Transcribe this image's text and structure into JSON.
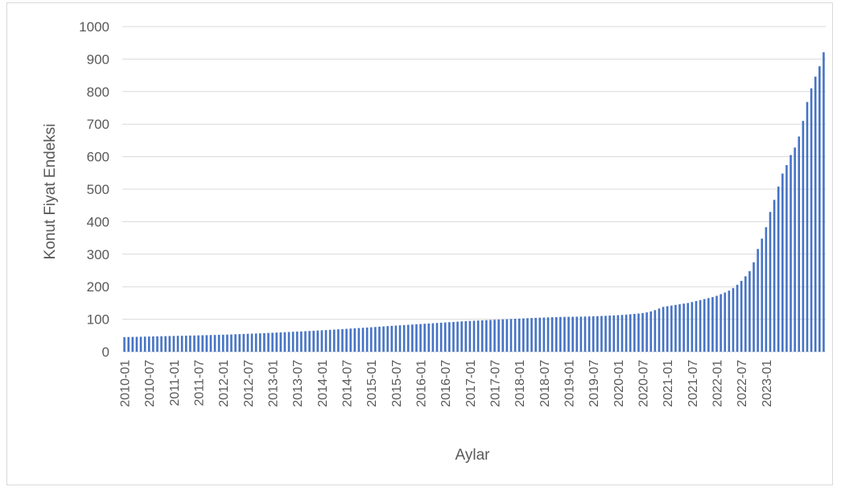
{
  "chart_data": {
    "type": "bar",
    "xlabel": "Aylar",
    "ylabel": "Konut Fiyat Endeksi",
    "ylim": [
      0,
      1000
    ],
    "yticks": [
      "0",
      "100",
      "200",
      "300",
      "400",
      "500",
      "600",
      "700",
      "800",
      "900",
      "1000"
    ],
    "grid": true,
    "bar_color": "#4472c4",
    "xtick_labels": [
      "2010-01",
      "2010-07",
      "2011-01",
      "2011-07",
      "2012-01",
      "2012-07",
      "2013-01",
      "2013-07",
      "2014-01",
      "2014-07",
      "2015-01",
      "2015-07",
      "2016-01",
      "2016-07",
      "2017-01",
      "2017-07",
      "2018-01",
      "2018-07",
      "2019-01",
      "2019-07",
      "2020-01",
      "2020-07",
      "2021-01",
      "2021-07",
      "2022-01",
      "2022-07",
      "2023-01"
    ],
    "start_month": "2010-01",
    "values": [
      45.0,
      45.3,
      45.6,
      45.9,
      46.2,
      46.5,
      46.8,
      47.1,
      47.4,
      47.7,
      48.0,
      48.3,
      48.6,
      48.9,
      49.2,
      49.5,
      49.8,
      50.1,
      50.4,
      50.7,
      51.0,
      51.3,
      51.6,
      52.0,
      52.4,
      52.8,
      53.2,
      53.7,
      54.2,
      54.7,
      55.2,
      55.7,
      56.2,
      56.7,
      57.2,
      57.8,
      58.4,
      59.0,
      59.6,
      60.2,
      60.8,
      61.4,
      62.0,
      62.6,
      63.2,
      63.9,
      64.6,
      65.3,
      66.0,
      66.7,
      67.4,
      68.1,
      68.9,
      69.7,
      70.5,
      71.3,
      72.1,
      72.9,
      73.7,
      74.5,
      75.3,
      76.1,
      77.0,
      77.9,
      78.8,
      79.7,
      80.5,
      81.3,
      82.1,
      82.9,
      83.7,
      84.5,
      85.3,
      86.1,
      86.9,
      87.7,
      88.5,
      89.3,
      90.1,
      90.9,
      91.7,
      92.5,
      93.3,
      94.0,
      94.7,
      95.4,
      96.0,
      96.6,
      97.2,
      97.8,
      98.4,
      99.0,
      99.6,
      100.2,
      100.8,
      101.4,
      102.0,
      102.6,
      103.2,
      103.7,
      104.2,
      104.7,
      105.2,
      105.7,
      106.2,
      106.6,
      107.0,
      107.2,
      107.4,
      107.6,
      107.8,
      108.0,
      108.3,
      108.6,
      109.0,
      109.5,
      110.0,
      110.6,
      111.2,
      111.8,
      112.5,
      113.3,
      114.2,
      115.2,
      116.3,
      117.5,
      119.0,
      121.0,
      124.0,
      128.0,
      133.0,
      138.0,
      140.0,
      142.0,
      144.0,
      146.0,
      148.0,
      150.0,
      153.0,
      156.0,
      159.0,
      162.0,
      165.0,
      168.0,
      172.0,
      177.0,
      182.0,
      188.0,
      196.0,
      206.0,
      218.0,
      232.0,
      248.0,
      275.0,
      316.0,
      348.0,
      383.0,
      430.0,
      467.0,
      508.0,
      548.0,
      574.0,
      605.0,
      628.0,
      662.0,
      710.0,
      768.0,
      810.0,
      846.0,
      878.0,
      921.0
    ]
  }
}
